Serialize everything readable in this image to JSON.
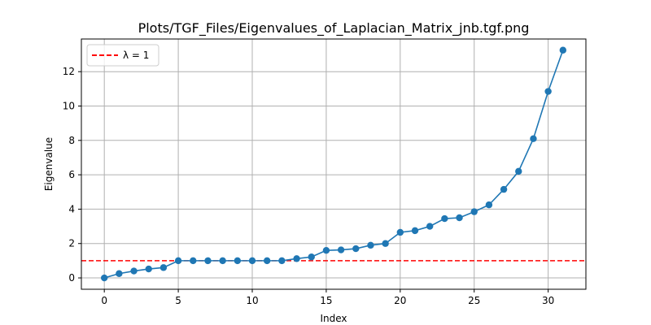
{
  "chart_data": {
    "type": "line",
    "title": "Plots/TGF_Files/Eigenvalues_of_Laplacian_Matrix_jnb.tgf.png",
    "xlabel": "Index",
    "ylabel": "Eigenvalue",
    "xlim": [
      -1.55,
      32.55
    ],
    "ylim": [
      -0.66,
      13.9
    ],
    "xticks": [
      0,
      5,
      10,
      15,
      20,
      25,
      30
    ],
    "yticks": [
      0,
      2,
      4,
      6,
      8,
      10,
      12
    ],
    "grid": true,
    "legend_position": "top-left",
    "series": [
      {
        "name": "",
        "color": "#1f77b4",
        "marker": "circle",
        "x": [
          0,
          1,
          2,
          3,
          4,
          5,
          6,
          7,
          8,
          9,
          10,
          11,
          12,
          13,
          14,
          15,
          16,
          17,
          18,
          19,
          20,
          21,
          22,
          23,
          24,
          25,
          26,
          27,
          28,
          29,
          30,
          31
        ],
        "y": [
          0.0,
          0.25,
          0.4,
          0.52,
          0.6,
          1.0,
          1.0,
          1.0,
          1.0,
          1.0,
          1.0,
          1.0,
          1.0,
          1.12,
          1.22,
          1.6,
          1.63,
          1.7,
          1.9,
          2.0,
          2.65,
          2.75,
          3.0,
          3.45,
          3.5,
          3.85,
          4.25,
          5.15,
          6.2,
          8.1,
          10.85,
          13.25
        ]
      }
    ],
    "reference_lines": [
      {
        "name": "λ = 1",
        "y": 1,
        "color": "#ff0000",
        "style": "dashed"
      }
    ]
  }
}
